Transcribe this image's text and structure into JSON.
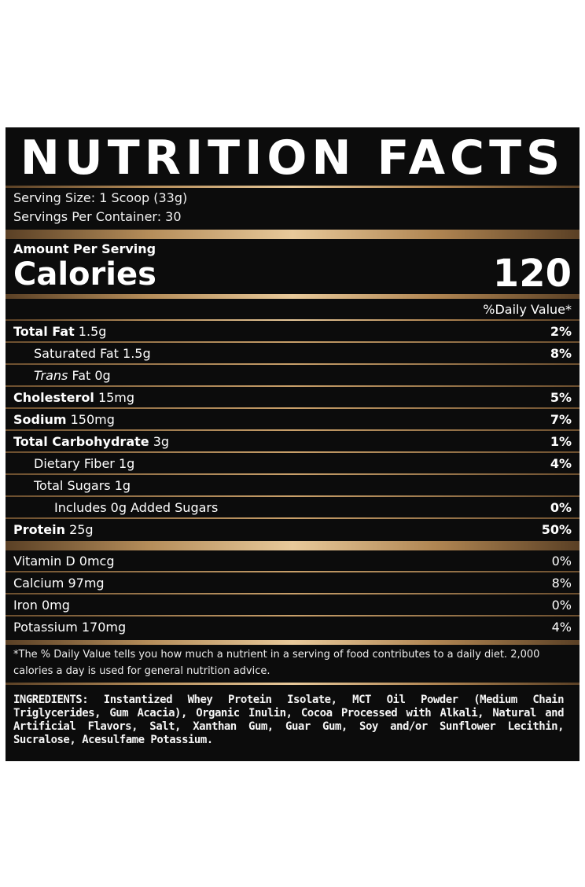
{
  "title": "NUTRITION FACTS",
  "serving_size": "Serving Size: 1 Scoop (33g)",
  "servings_per_container": "Servings Per Container: 30",
  "amount_per_serving": "Amount Per Serving",
  "calories_label": "Calories",
  "calories_value": "120",
  "daily_value_header": "%Daily Value*",
  "nutrients": [
    {
      "bold": "Total Fat",
      "rest": " 1.5g",
      "pct": "2%"
    },
    {
      "pre": "Saturated Fat 1.5g",
      "pct": "8%"
    },
    {
      "italic": "Trans",
      "rest": " Fat 0g",
      "pct": ""
    },
    {
      "bold": "Cholesterol",
      "rest": " 15mg",
      "pct": "5%"
    },
    {
      "bold": "Sodium",
      "rest": " 150mg",
      "pct": "7%"
    },
    {
      "bold": "Total Carbohydrate",
      "rest": " 3g",
      "pct": "1%"
    },
    {
      "pre": "Dietary Fiber 1g",
      "pct": "4%"
    },
    {
      "pre": "Total Sugars 1g",
      "pct": ""
    },
    {
      "pre": "Includes 0g Added Sugars",
      "pct": "0%"
    },
    {
      "bold": "Protein",
      "rest": " 25g",
      "pct": "50%"
    }
  ],
  "vitamins": [
    {
      "label": "Vitamin D 0mcg",
      "pct": "0%"
    },
    {
      "label": "Calcium 97mg",
      "pct": "8%"
    },
    {
      "label": "Iron 0mg",
      "pct": "0%"
    },
    {
      "label": "Potassium 170mg",
      "pct": "4%"
    }
  ],
  "footnote": "*The % Daily Value tells you how much a nutrient in a serving of food contributes to a daily diet. 2,000 calories a day is used for general nutrition advice.",
  "ingredients": "INGREDIENTS: Instantized Whey Protein Isolate, MCT Oil Powder (Medium Chain Triglycerides, Gum Acacia), Organic Inulin, Cocoa Processed with Alkali, Natural and Artificial Flavors, Salt, Xanthan Gum, Guar Gum, Soy and/or Sunflower Lecithin, Sucralose, Acesulfame Potassium."
}
